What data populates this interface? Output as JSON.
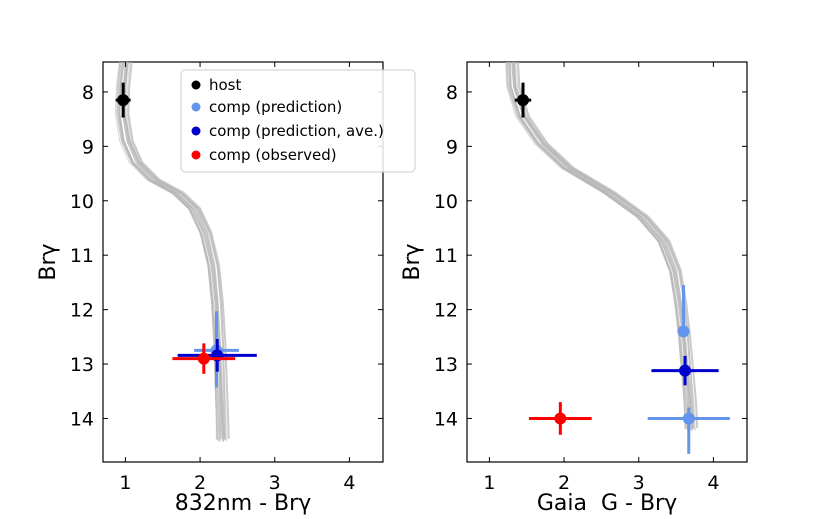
{
  "chart_data": [
    {
      "type": "scatter",
      "xlabel": "832nm - Brγ",
      "ylabel": "Brγ",
      "xlim": [
        0.7,
        4.45
      ],
      "ylim": [
        14.8,
        7.45
      ],
      "y_inverted": true,
      "xticks": [
        1,
        2,
        3,
        4
      ],
      "yticks": [
        8,
        9,
        10,
        11,
        12,
        13,
        14
      ],
      "grid": false,
      "legend_position": "top-right",
      "isochrone_tracks": {
        "color": "#b3b3b3",
        "count": 10,
        "shape": [
          [
            1.0,
            7.45
          ],
          [
            0.97,
            7.9
          ],
          [
            0.96,
            8.4
          ],
          [
            1.02,
            8.9
          ],
          [
            1.15,
            9.3
          ],
          [
            1.38,
            9.62
          ],
          [
            1.7,
            9.86
          ],
          [
            1.92,
            10.15
          ],
          [
            2.07,
            10.6
          ],
          [
            2.17,
            11.2
          ],
          [
            2.22,
            11.9
          ],
          [
            2.25,
            12.6
          ],
          [
            2.27,
            13.3
          ],
          [
            2.29,
            14.0
          ],
          [
            2.3,
            14.4
          ]
        ]
      },
      "series": [
        {
          "name": "host",
          "color": "#000000",
          "points": [
            {
              "x": 0.97,
              "y": 8.15,
              "xerr_lo": 0.1,
              "xerr_hi": 0.1,
              "yerr_lo": 0.32,
              "yerr_hi": 0.32
            }
          ]
        },
        {
          "name": "comp (prediction)",
          "color": "#6495ed",
          "points": [
            {
              "x": 2.22,
              "y": 12.75,
              "xerr_lo": 0.3,
              "xerr_hi": 0.3,
              "yerr_lo": 0.72,
              "yerr_hi": 0.68
            }
          ]
        },
        {
          "name": "comp (prediction, ave.)",
          "color": "#0000cd",
          "points": [
            {
              "x": 2.23,
              "y": 12.84,
              "xerr_lo": 0.53,
              "xerr_hi": 0.53,
              "yerr_lo": 0.3,
              "yerr_hi": 0.3
            }
          ]
        },
        {
          "name": "comp (observed)",
          "color": "#ff0000",
          "points": [
            {
              "x": 2.05,
              "y": 12.9,
              "xerr_lo": 0.42,
              "xerr_hi": 0.42,
              "yerr_lo": 0.28,
              "yerr_hi": 0.28
            }
          ]
        }
      ],
      "legend": [
        {
          "label": "host",
          "color": "#000000"
        },
        {
          "label": "comp (prediction)",
          "color": "#6495ed"
        },
        {
          "label": "comp (prediction, ave.)",
          "color": "#0000cd"
        },
        {
          "label": "comp (observed)",
          "color": "#ff0000"
        }
      ]
    },
    {
      "type": "scatter",
      "xlabel": "Gaia  G - Brγ",
      "ylabel": "Brγ",
      "xlim": [
        0.7,
        4.45
      ],
      "ylim": [
        14.8,
        7.45
      ],
      "y_inverted": true,
      "xticks": [
        1,
        2,
        3,
        4
      ],
      "yticks": [
        8,
        9,
        10,
        11,
        12,
        13,
        14
      ],
      "grid": false,
      "isochrone_tracks": {
        "color": "#b3b3b3",
        "count": 10,
        "shape": [
          [
            1.3,
            7.45
          ],
          [
            1.32,
            7.9
          ],
          [
            1.45,
            8.45
          ],
          [
            1.7,
            8.95
          ],
          [
            2.05,
            9.4
          ],
          [
            2.6,
            9.85
          ],
          [
            3.05,
            10.3
          ],
          [
            3.33,
            10.75
          ],
          [
            3.48,
            11.3
          ],
          [
            3.55,
            11.9
          ],
          [
            3.6,
            12.5
          ],
          [
            3.64,
            13.1
          ],
          [
            3.68,
            13.7
          ],
          [
            3.7,
            14.2
          ]
        ]
      },
      "series": [
        {
          "name": "host",
          "color": "#000000",
          "points": [
            {
              "x": 1.45,
              "y": 8.15,
              "xerr_lo": 0.11,
              "xerr_hi": 0.11,
              "yerr_lo": 0.32,
              "yerr_hi": 0.32
            }
          ]
        },
        {
          "name": "comp (prediction)",
          "color": "#6495ed",
          "points": [
            {
              "x": 3.6,
              "y": 12.4,
              "xerr_lo": 0.05,
              "xerr_hi": 0.05,
              "yerr_lo": 0.85,
              "yerr_hi": 0.1
            },
            {
              "x": 3.67,
              "y": 14.0,
              "xerr_lo": 0.55,
              "xerr_hi": 0.55,
              "yerr_lo": 0.2,
              "yerr_hi": 0.65
            }
          ]
        },
        {
          "name": "comp (prediction, ave.)",
          "color": "#0000cd",
          "points": [
            {
              "x": 3.62,
              "y": 13.12,
              "xerr_lo": 0.45,
              "xerr_hi": 0.45,
              "yerr_lo": 0.27,
              "yerr_hi": 0.27
            }
          ]
        },
        {
          "name": "comp (observed)",
          "color": "#ff0000",
          "points": [
            {
              "x": 1.95,
              "y": 14.0,
              "xerr_lo": 0.42,
              "xerr_hi": 0.42,
              "yerr_lo": 0.3,
              "yerr_hi": 0.3
            }
          ]
        }
      ]
    }
  ]
}
